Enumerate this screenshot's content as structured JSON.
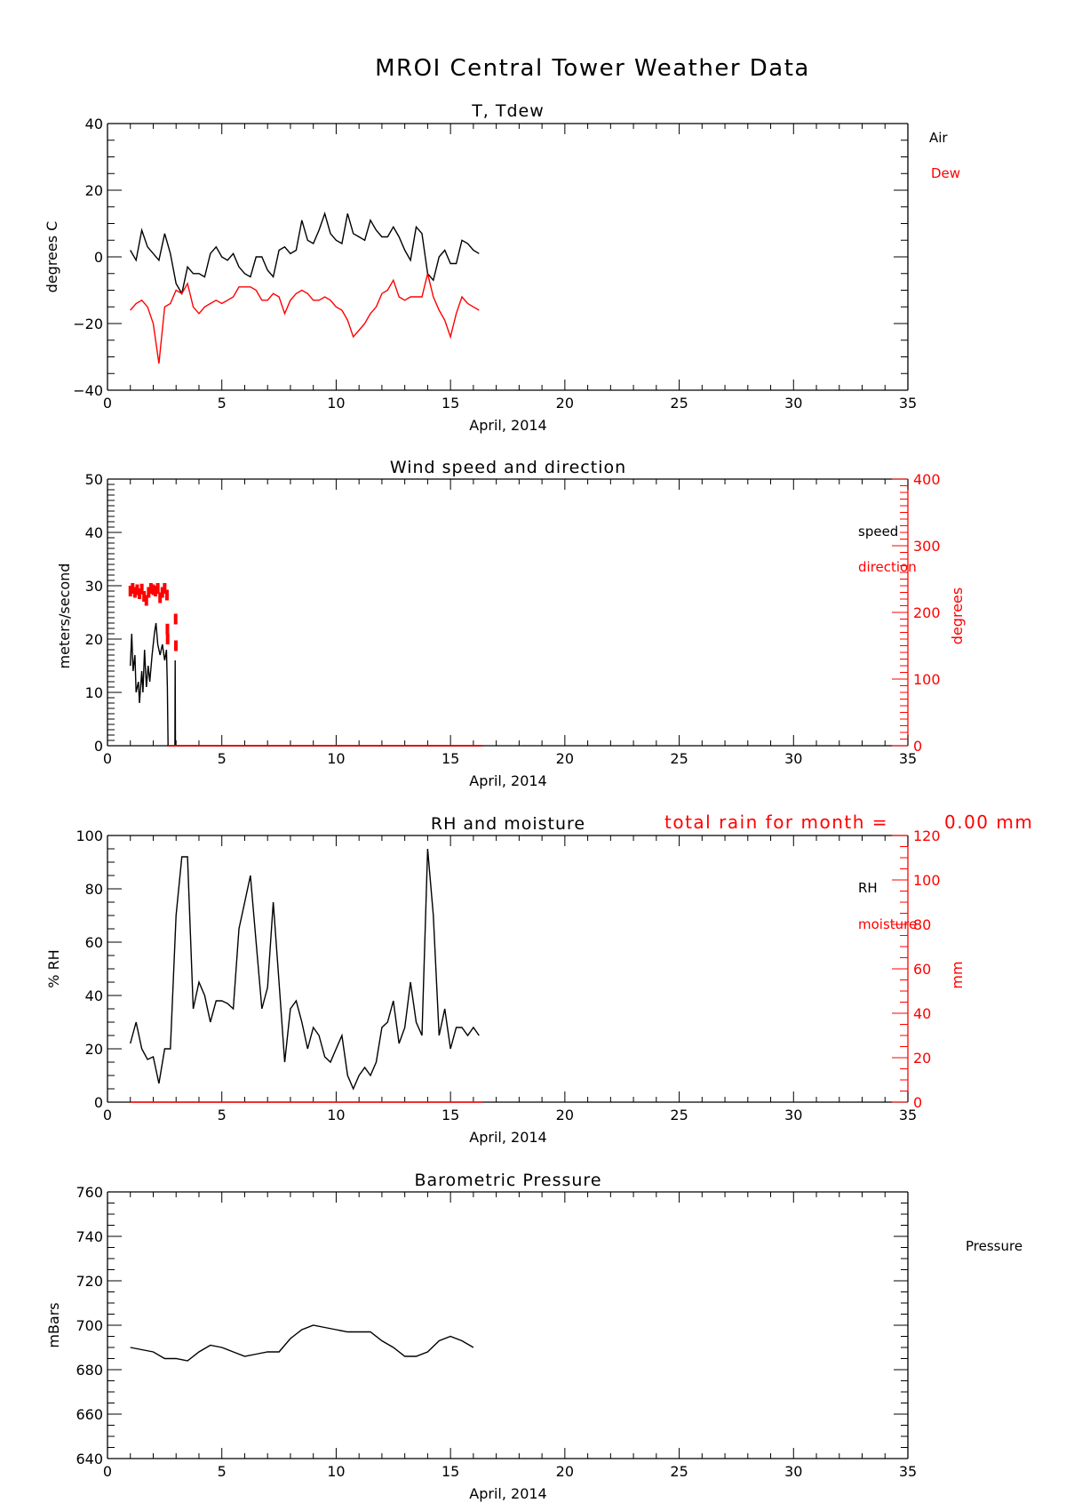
{
  "title": "MROI Central Tower Weather Data",
  "colors": {
    "primary": "#000000",
    "secondary": "#ff0000"
  },
  "rain_note": {
    "label": "total rain for month =",
    "value": "0.00 mm"
  },
  "chart_data": [
    {
      "type": "line",
      "title": "T, Tdew",
      "xlabel": "April, 2014",
      "ylabel": "degrees C",
      "xlim": [
        0,
        35
      ],
      "ylim": [
        -40,
        40
      ],
      "xticks": [
        0,
        5,
        10,
        15,
        20,
        25,
        30,
        35
      ],
      "yticks": [
        -40,
        -20,
        0,
        20,
        40
      ],
      "ytick_labels": [
        "−40",
        "−20",
        "0",
        "20",
        "40"
      ],
      "x_start": 1,
      "x_step": 0.25,
      "series": [
        {
          "name": "Air",
          "color": "#000000",
          "values": [
            2,
            -1,
            8,
            3,
            1,
            -1,
            7,
            1,
            -8,
            -11,
            -3,
            -5,
            -5,
            -6,
            1,
            3,
            0,
            -1,
            1,
            -3,
            -5,
            -6,
            0,
            0,
            -4,
            -6,
            2,
            3,
            1,
            2,
            11,
            5,
            4,
            8,
            13,
            7,
            5,
            4,
            13,
            7,
            6,
            5,
            11,
            8,
            6,
            6,
            9,
            6,
            2,
            -1,
            9,
            7,
            -5,
            -7,
            0,
            2,
            -2,
            -2,
            5,
            4,
            2,
            1
          ]
        },
        {
          "name": "Dew",
          "color": "#ff0000",
          "values": [
            -16,
            -14,
            -13,
            -15,
            -20,
            -32,
            -15,
            -14,
            -10,
            -11,
            -8,
            -15,
            -17,
            -15,
            -14,
            -13,
            -14,
            -13,
            -12,
            -9,
            -9,
            -9,
            -10,
            -13,
            -13,
            -11,
            -12,
            -17,
            -13,
            -11,
            -10,
            -11,
            -13,
            -13,
            -12,
            -13,
            -15,
            -16,
            -19,
            -24,
            -22,
            -20,
            -17,
            -15,
            -11,
            -10,
            -7,
            -12,
            -13,
            -12,
            -12,
            -12,
            -5,
            -12,
            -16,
            -19,
            -24,
            -17,
            -12,
            -14,
            -15,
            -16
          ]
        }
      ]
    },
    {
      "type": "line",
      "title": "Wind speed and direction",
      "xlabel": "April, 2014",
      "ylabel": "meters/second",
      "ylabel_right": "degrees",
      "xlim": [
        0,
        35
      ],
      "ylim": [
        0,
        50
      ],
      "ylim_right": [
        0,
        400
      ],
      "xticks": [
        0,
        5,
        10,
        15,
        20,
        25,
        30,
        35
      ],
      "yticks": [
        0,
        10,
        20,
        30,
        40,
        50
      ],
      "yticks_right": [
        0,
        100,
        200,
        300,
        400
      ],
      "series": [
        {
          "name": "speed",
          "color": "#000000",
          "axis": "left",
          "points": [
            [
              1,
              15
            ],
            [
              1.06,
              21
            ],
            [
              1.12,
              14
            ],
            [
              1.2,
              17
            ],
            [
              1.25,
              10
            ],
            [
              1.35,
              12
            ],
            [
              1.4,
              8
            ],
            [
              1.5,
              14
            ],
            [
              1.55,
              10
            ],
            [
              1.62,
              18
            ],
            [
              1.7,
              11
            ],
            [
              1.78,
              15
            ],
            [
              1.85,
              12
            ],
            [
              1.95,
              17
            ],
            [
              2.05,
              21
            ],
            [
              2.12,
              23
            ],
            [
              2.2,
              19
            ],
            [
              2.3,
              17
            ],
            [
              2.4,
              19
            ],
            [
              2.5,
              16
            ],
            [
              2.58,
              18
            ],
            [
              2.62,
              11
            ],
            [
              2.65,
              0
            ],
            [
              2.95,
              0
            ],
            [
              2.96,
              16
            ],
            [
              2.97,
              0
            ],
            [
              16.4,
              0
            ]
          ]
        },
        {
          "name": "direction",
          "color": "#ff0000",
          "axis": "right",
          "style": "scatter",
          "points": [
            [
              1.0,
              232
            ],
            [
              1.1,
              236
            ],
            [
              1.2,
              230
            ],
            [
              1.3,
              234
            ],
            [
              1.4,
              228
            ],
            [
              1.5,
              235
            ],
            [
              1.6,
              224
            ],
            [
              1.7,
              218
            ],
            [
              1.8,
              230
            ],
            [
              1.9,
              236
            ],
            [
              2.0,
              234
            ],
            [
              2.1,
              232
            ],
            [
              2.2,
              236
            ],
            [
              2.3,
              222
            ],
            [
              2.4,
              230
            ],
            [
              2.5,
              236
            ],
            [
              2.6,
              226
            ],
            [
              2.62,
              175
            ],
            [
              2.63,
              160
            ],
            [
              2.98,
              190
            ],
            [
              2.99,
              150
            ]
          ]
        },
        {
          "name": "direction-baseline",
          "color": "#ff0000",
          "axis": "right",
          "points": [
            [
              2.65,
              0
            ],
            [
              16.4,
              0
            ]
          ]
        }
      ]
    },
    {
      "type": "line",
      "title": "RH and moisture",
      "xlabel": "April, 2014",
      "ylabel": "% RH",
      "ylabel_right": "mm",
      "xlim": [
        0,
        35
      ],
      "ylim": [
        0,
        100
      ],
      "ylim_right": [
        0,
        120
      ],
      "xticks": [
        0,
        5,
        10,
        15,
        20,
        25,
        30,
        35
      ],
      "yticks": [
        0,
        20,
        40,
        60,
        80,
        100
      ],
      "yticks_right": [
        0,
        20,
        40,
        60,
        80,
        100,
        120
      ],
      "x_start": 1,
      "x_step": 0.25,
      "series": [
        {
          "name": "RH",
          "color": "#000000",
          "values": [
            22,
            30,
            20,
            16,
            17,
            7,
            20,
            20,
            70,
            92,
            92,
            35,
            45,
            40,
            30,
            38,
            38,
            37,
            35,
            65,
            75,
            85,
            60,
            35,
            43,
            75,
            45,
            15,
            35,
            38,
            30,
            20,
            28,
            25,
            17,
            15,
            20,
            25,
            10,
            5,
            10,
            13,
            10,
            15,
            28,
            30,
            38,
            22,
            28,
            45,
            30,
            25,
            95,
            70,
            25,
            35,
            20,
            28,
            28,
            25,
            28,
            25
          ]
        },
        {
          "name": "moisture",
          "color": "#ff0000",
          "axis": "right",
          "points": [
            [
              1,
              0
            ],
            [
              16.4,
              0
            ]
          ]
        }
      ]
    },
    {
      "type": "line",
      "title": "Barometric Pressure",
      "xlabel": "April, 2014",
      "ylabel": "mBars",
      "xlim": [
        0,
        35
      ],
      "ylim": [
        640,
        760
      ],
      "xticks": [
        0,
        5,
        10,
        15,
        20,
        25,
        30,
        35
      ],
      "yticks": [
        640,
        660,
        680,
        700,
        720,
        740,
        760
      ],
      "x_start": 1,
      "x_step": 0.5,
      "series": [
        {
          "name": "Pressure",
          "color": "#000000",
          "values": [
            690,
            689,
            688,
            685,
            685,
            684,
            688,
            691,
            690,
            688,
            686,
            687,
            688,
            688,
            694,
            698,
            700,
            699,
            698,
            697,
            697,
            697,
            693,
            690,
            686,
            686,
            688,
            693,
            695,
            693,
            690
          ]
        }
      ]
    }
  ]
}
